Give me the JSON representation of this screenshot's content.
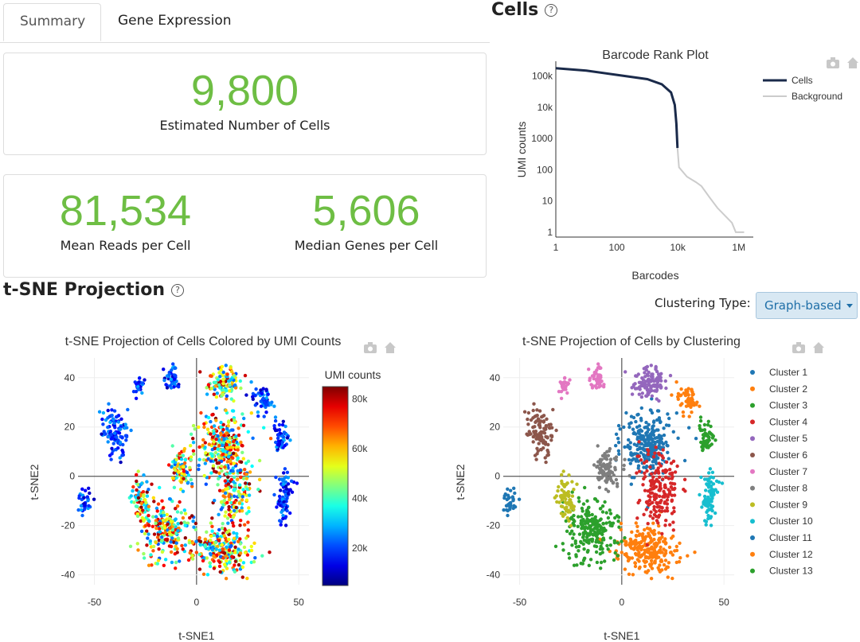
{
  "tabs": {
    "summary": "Summary",
    "gene_expression": "Gene Expression"
  },
  "metrics": {
    "estimated_cells": {
      "value": "9,800",
      "label": "Estimated Number of Cells"
    },
    "mean_reads": {
      "value": "81,534",
      "label": "Mean Reads per Cell"
    },
    "median_genes": {
      "value": "5,606",
      "label": "Median Genes per Cell"
    }
  },
  "sections": {
    "cells": "Cells",
    "tsne": "t-SNE Projection",
    "help_icon": "?"
  },
  "clustering": {
    "label": "Clustering Type:",
    "value": "Graph-based"
  },
  "colors": {
    "metric_green": "#6ebe44",
    "cells_line": "#1a2a4a",
    "background_line": "#cccccc",
    "dropdown_bg": "#d8e8f3"
  },
  "chart_data": [
    {
      "type": "line",
      "title": "Barcode Rank Plot",
      "xlabel": "Barcodes",
      "ylabel": "UMI counts",
      "xscale": "log",
      "yscale": "log",
      "xticks": [
        "1",
        "100",
        "10k",
        "1M"
      ],
      "yticks": [
        "1",
        "10",
        "100",
        "1000",
        "10k",
        "100k"
      ],
      "legend_position": "right",
      "series": [
        {
          "name": "Cells",
          "color": "#1a2a4a",
          "x": [
            1,
            10,
            100,
            1000,
            3000,
            6000,
            8000,
            9000,
            9800
          ],
          "y": [
            180000,
            150000,
            110000,
            80000,
            55000,
            30000,
            12000,
            3000,
            500
          ]
        },
        {
          "name": "Background",
          "color": "#cccccc",
          "x": [
            9800,
            11000,
            20000,
            40000,
            60000,
            100000,
            200000,
            400000,
            600000,
            800000,
            1500000
          ],
          "y": [
            500,
            120,
            60,
            40,
            30,
            15,
            6,
            3,
            2,
            1,
            1
          ]
        }
      ]
    },
    {
      "type": "scatter",
      "title": "t-SNE Projection of Cells Colored by UMI Counts",
      "xlabel": "t-SNE1",
      "ylabel": "t-SNE2",
      "xticks": [
        "-50",
        "0",
        "50"
      ],
      "yticks": [
        "-40",
        "-20",
        "0",
        "20",
        "40"
      ],
      "xlim": [
        -58,
        55
      ],
      "ylim": [
        -44,
        48
      ],
      "colorbar": {
        "title": "UMI counts",
        "ticks": [
          "20k",
          "40k",
          "60k",
          "80k"
        ],
        "range": [
          5000,
          85000
        ]
      }
    },
    {
      "type": "scatter",
      "title": "t-SNE Projection of Cells by Clustering",
      "xlabel": "t-SNE1",
      "ylabel": "t-SNE2",
      "xticks": [
        "-50",
        "0",
        "50"
      ],
      "yticks": [
        "-40",
        "-20",
        "0",
        "20",
        "40"
      ],
      "xlim": [
        -58,
        55
      ],
      "ylim": [
        -44,
        48
      ],
      "series": [
        {
          "name": "Cluster 1",
          "color": "#1f77b4"
        },
        {
          "name": "Cluster 2",
          "color": "#ff7f0e"
        },
        {
          "name": "Cluster 3",
          "color": "#2ca02c"
        },
        {
          "name": "Cluster 4",
          "color": "#d62728"
        },
        {
          "name": "Cluster 5",
          "color": "#9467bd"
        },
        {
          "name": "Cluster 6",
          "color": "#8c564b"
        },
        {
          "name": "Cluster 7",
          "color": "#e377c2"
        },
        {
          "name": "Cluster 8",
          "color": "#7f7f7f"
        },
        {
          "name": "Cluster 9",
          "color": "#bcbd22"
        },
        {
          "name": "Cluster 10",
          "color": "#17becf"
        },
        {
          "name": "Cluster 11",
          "color": "#1f77b4"
        },
        {
          "name": "Cluster 12",
          "color": "#ff7f0e"
        },
        {
          "name": "Cluster 13",
          "color": "#2ca02c"
        }
      ]
    }
  ]
}
